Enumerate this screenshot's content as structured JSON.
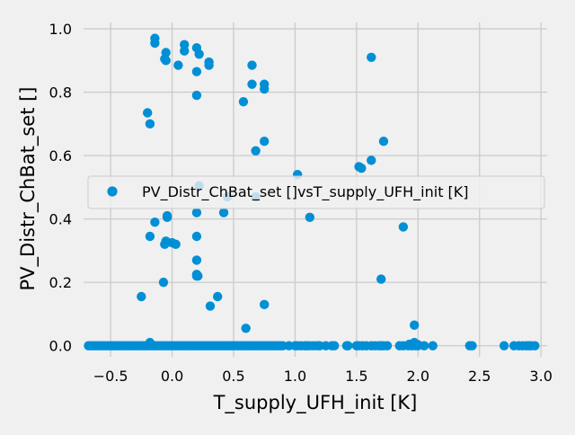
{
  "chart_data": {
    "type": "scatter",
    "title": "",
    "xlabel": "T_supply_UFH_init [K]",
    "ylabel": "PV_Distr_ChBat_set []",
    "xlim": [
      -0.72,
      3.05
    ],
    "ylim": [
      -0.035,
      1.02
    ],
    "xticks": [
      -0.5,
      0.0,
      0.5,
      1.0,
      1.5,
      2.0,
      2.5,
      3.0
    ],
    "xtick_labels": [
      "−0.5",
      "0.0",
      "0.5",
      "1.0",
      "1.5",
      "2.0",
      "2.5",
      "3.0"
    ],
    "yticks": [
      0.0,
      0.2,
      0.4,
      0.6,
      0.8,
      1.0
    ],
    "ytick_labels": [
      "0.0",
      "0.2",
      "0.4",
      "0.6",
      "0.8",
      "1.0"
    ],
    "grid": true,
    "legend_position": "center",
    "colors": {
      "series": "#008fd5",
      "background": "#f0f0f0",
      "grid": "#cbcbcb"
    },
    "series": [
      {
        "name": "PV_Distr_ChBat_set []vsT_supply_UFH_init [K]",
        "points": [
          [
            -0.14,
            0.97
          ],
          [
            -0.14,
            0.955
          ],
          [
            0.1,
            0.95
          ],
          [
            0.2,
            0.94
          ],
          [
            0.1,
            0.93
          ],
          [
            -0.05,
            0.925
          ],
          [
            0.22,
            0.92
          ],
          [
            -0.06,
            0.905
          ],
          [
            -0.05,
            0.9
          ],
          [
            0.3,
            0.895
          ],
          [
            0.3,
            0.885
          ],
          [
            0.05,
            0.885
          ],
          [
            0.65,
            0.885
          ],
          [
            1.62,
            0.91
          ],
          [
            0.2,
            0.865
          ],
          [
            0.65,
            0.825
          ],
          [
            0.75,
            0.825
          ],
          [
            0.75,
            0.81
          ],
          [
            0.2,
            0.79
          ],
          [
            0.58,
            0.77
          ],
          [
            -0.2,
            0.735
          ],
          [
            -0.18,
            0.7
          ],
          [
            0.75,
            0.645
          ],
          [
            1.72,
            0.645
          ],
          [
            0.68,
            0.615
          ],
          [
            1.62,
            0.585
          ],
          [
            1.52,
            0.565
          ],
          [
            1.54,
            0.56
          ],
          [
            1.02,
            0.54
          ],
          [
            0.22,
            0.505
          ],
          [
            0.68,
            0.47
          ],
          [
            0.45,
            0.47
          ],
          [
            -0.04,
            0.41
          ],
          [
            0.2,
            0.42
          ],
          [
            0.42,
            0.42
          ],
          [
            -0.04,
            0.405
          ],
          [
            1.12,
            0.405
          ],
          [
            -0.14,
            0.39
          ],
          [
            1.88,
            0.375
          ],
          [
            -0.18,
            0.345
          ],
          [
            0.2,
            0.345
          ],
          [
            -0.05,
            0.33
          ],
          [
            0.0,
            0.325
          ],
          [
            -0.06,
            0.32
          ],
          [
            0.03,
            0.32
          ],
          [
            0.2,
            0.27
          ],
          [
            0.2,
            0.225
          ],
          [
            0.2,
            0.22
          ],
          [
            0.21,
            0.22
          ],
          [
            1.7,
            0.21
          ],
          [
            -0.07,
            0.2
          ],
          [
            -0.25,
            0.155
          ],
          [
            0.37,
            0.155
          ],
          [
            0.75,
            0.13
          ],
          [
            0.31,
            0.125
          ],
          [
            1.97,
            0.065
          ],
          [
            0.6,
            0.055
          ],
          [
            -0.18,
            0.01
          ],
          [
            1.97,
            0.01
          ],
          [
            1.93,
            0.005
          ],
          [
            2.0,
            0.003
          ],
          [
            -0.68,
            0
          ],
          [
            -0.66,
            0
          ],
          [
            -0.64,
            0
          ],
          [
            -0.62,
            0
          ],
          [
            -0.6,
            0
          ],
          [
            -0.58,
            0
          ],
          [
            -0.56,
            0
          ],
          [
            -0.54,
            0
          ],
          [
            -0.52,
            0
          ],
          [
            -0.5,
            0
          ],
          [
            -0.48,
            0
          ],
          [
            -0.46,
            0
          ],
          [
            -0.44,
            0
          ],
          [
            -0.42,
            0
          ],
          [
            -0.4,
            0
          ],
          [
            -0.38,
            0
          ],
          [
            -0.36,
            0
          ],
          [
            -0.34,
            0
          ],
          [
            -0.32,
            0
          ],
          [
            -0.3,
            0
          ],
          [
            -0.28,
            0
          ],
          [
            -0.26,
            0
          ],
          [
            -0.24,
            0
          ],
          [
            -0.22,
            0
          ],
          [
            -0.2,
            0
          ],
          [
            -0.18,
            0
          ],
          [
            -0.16,
            0
          ],
          [
            -0.14,
            0
          ],
          [
            -0.12,
            0
          ],
          [
            -0.1,
            0
          ],
          [
            -0.08,
            0
          ],
          [
            -0.06,
            0
          ],
          [
            -0.04,
            0
          ],
          [
            -0.02,
            0
          ],
          [
            0.0,
            0
          ],
          [
            0.02,
            0
          ],
          [
            0.04,
            0
          ],
          [
            0.06,
            0
          ],
          [
            0.08,
            0
          ],
          [
            0.1,
            0
          ],
          [
            0.12,
            0
          ],
          [
            0.14,
            0
          ],
          [
            0.16,
            0
          ],
          [
            0.18,
            0
          ],
          [
            0.2,
            0
          ],
          [
            0.22,
            0
          ],
          [
            0.24,
            0
          ],
          [
            0.26,
            0
          ],
          [
            0.28,
            0
          ],
          [
            0.3,
            0
          ],
          [
            0.32,
            0
          ],
          [
            0.34,
            0
          ],
          [
            0.36,
            0
          ],
          [
            0.38,
            0
          ],
          [
            0.4,
            0
          ],
          [
            0.42,
            0
          ],
          [
            0.44,
            0
          ],
          [
            0.46,
            0
          ],
          [
            0.48,
            0
          ],
          [
            0.5,
            0
          ],
          [
            0.52,
            0
          ],
          [
            0.54,
            0
          ],
          [
            0.56,
            0
          ],
          [
            0.58,
            0
          ],
          [
            0.6,
            0
          ],
          [
            0.62,
            0
          ],
          [
            0.64,
            0
          ],
          [
            0.66,
            0
          ],
          [
            0.68,
            0
          ],
          [
            0.7,
            0
          ],
          [
            0.72,
            0
          ],
          [
            0.74,
            0
          ],
          [
            0.76,
            0
          ],
          [
            0.78,
            0
          ],
          [
            0.8,
            0
          ],
          [
            0.82,
            0
          ],
          [
            0.84,
            0
          ],
          [
            0.86,
            0
          ],
          [
            0.88,
            0
          ],
          [
            0.9,
            0
          ],
          [
            0.95,
            0
          ],
          [
            1.0,
            0
          ],
          [
            1.02,
            0
          ],
          [
            1.05,
            0
          ],
          [
            1.08,
            0
          ],
          [
            1.1,
            0
          ],
          [
            1.12,
            0
          ],
          [
            1.15,
            0
          ],
          [
            1.18,
            0
          ],
          [
            1.2,
            0
          ],
          [
            1.25,
            0
          ],
          [
            1.3,
            0
          ],
          [
            1.32,
            0
          ],
          [
            1.42,
            0
          ],
          [
            1.43,
            0
          ],
          [
            1.5,
            0
          ],
          [
            1.52,
            0
          ],
          [
            1.55,
            0
          ],
          [
            1.58,
            0
          ],
          [
            1.62,
            0
          ],
          [
            1.65,
            0
          ],
          [
            1.68,
            0
          ],
          [
            1.7,
            0
          ],
          [
            1.72,
            0
          ],
          [
            1.75,
            0
          ],
          [
            1.85,
            0
          ],
          [
            1.88,
            0
          ],
          [
            1.92,
            0
          ],
          [
            1.95,
            0
          ],
          [
            1.98,
            0
          ],
          [
            2.0,
            0
          ],
          [
            2.05,
            0
          ],
          [
            2.12,
            0
          ],
          [
            2.42,
            0
          ],
          [
            2.44,
            0
          ],
          [
            2.7,
            0
          ],
          [
            2.78,
            0
          ],
          [
            2.82,
            0
          ],
          [
            2.85,
            0
          ],
          [
            2.88,
            0
          ],
          [
            2.9,
            0
          ],
          [
            2.92,
            0
          ],
          [
            2.95,
            0
          ]
        ]
      }
    ]
  }
}
